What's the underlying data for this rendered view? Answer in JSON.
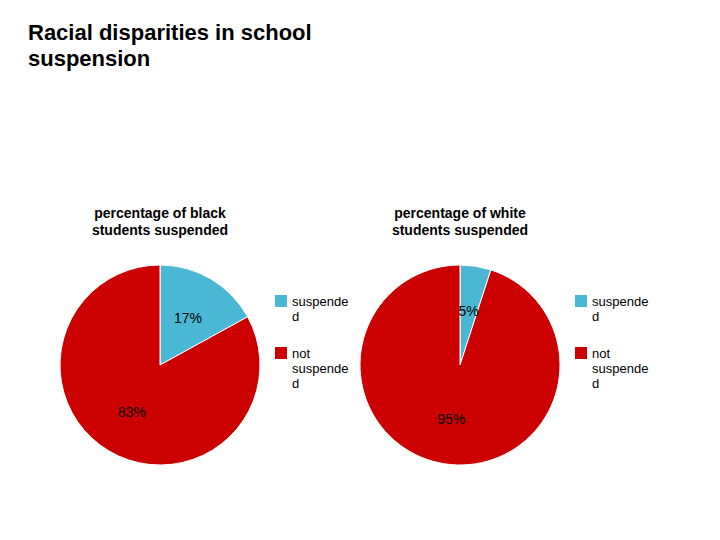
{
  "chart_data": {
    "type": "pie",
    "title": "Racial disparities in school\nsuspension",
    "categories": [
      "suspende\nd",
      "not\nsuspende\nd"
    ],
    "colors": [
      "#4ab8d4",
      "#cc0000"
    ],
    "legend": "right",
    "data_labels": true,
    "series": [
      {
        "name": "percentage of black\nstudents suspended",
        "values": [
          17,
          83
        ],
        "value_labels": [
          "17%",
          "83%"
        ]
      },
      {
        "name": "percentage of white\nstudents suspended",
        "values": [
          5,
          95
        ],
        "value_labels": [
          "5%",
          "95%"
        ]
      }
    ]
  }
}
